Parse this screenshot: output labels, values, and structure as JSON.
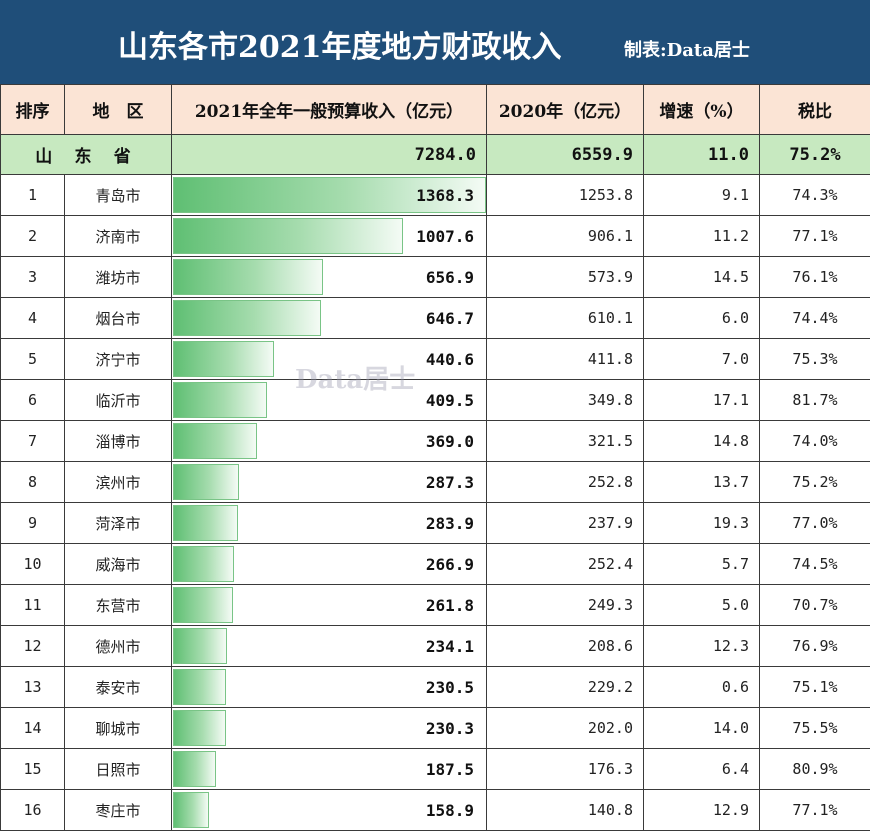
{
  "header": {
    "title": "山东各市2021年度地方财政收入",
    "author": "制表:Data居士"
  },
  "columns": [
    "排序",
    "地　区",
    "2021年全年一般预算收入（亿元）",
    "2020年（亿元）",
    "增速（%）",
    "税比"
  ],
  "province": {
    "name": "山 东 省",
    "v2021": "7284.0",
    "v2020": "6559.9",
    "growth": "11.0",
    "tax": "75.2%"
  },
  "watermark": "Data居士",
  "chart_data": {
    "type": "table",
    "bar_max": 1368.3,
    "rows": [
      {
        "rank": "1",
        "city": "青岛市",
        "v2021": "1368.3",
        "value": 1368.3,
        "v2020": "1253.8",
        "growth": "9.1",
        "tax": "74.3%"
      },
      {
        "rank": "2",
        "city": "济南市",
        "v2021": "1007.6",
        "value": 1007.6,
        "v2020": "906.1",
        "growth": "11.2",
        "tax": "77.1%"
      },
      {
        "rank": "3",
        "city": "潍坊市",
        "v2021": "656.9",
        "value": 656.9,
        "v2020": "573.9",
        "growth": "14.5",
        "tax": "76.1%"
      },
      {
        "rank": "4",
        "city": "烟台市",
        "v2021": "646.7",
        "value": 646.7,
        "v2020": "610.1",
        "growth": "6.0",
        "tax": "74.4%"
      },
      {
        "rank": "5",
        "city": "济宁市",
        "v2021": "440.6",
        "value": 440.6,
        "v2020": "411.8",
        "growth": "7.0",
        "tax": "75.3%"
      },
      {
        "rank": "6",
        "city": "临沂市",
        "v2021": "409.5",
        "value": 409.5,
        "v2020": "349.8",
        "growth": "17.1",
        "tax": "81.7%"
      },
      {
        "rank": "7",
        "city": "淄博市",
        "v2021": "369.0",
        "value": 369.0,
        "v2020": "321.5",
        "growth": "14.8",
        "tax": "74.0%"
      },
      {
        "rank": "8",
        "city": "滨州市",
        "v2021": "287.3",
        "value": 287.3,
        "v2020": "252.8",
        "growth": "13.7",
        "tax": "75.2%"
      },
      {
        "rank": "9",
        "city": "菏泽市",
        "v2021": "283.9",
        "value": 283.9,
        "v2020": "237.9",
        "growth": "19.3",
        "tax": "77.0%"
      },
      {
        "rank": "10",
        "city": "威海市",
        "v2021": "266.9",
        "value": 266.9,
        "v2020": "252.4",
        "growth": "5.7",
        "tax": "74.5%"
      },
      {
        "rank": "11",
        "city": "东营市",
        "v2021": "261.8",
        "value": 261.8,
        "v2020": "249.3",
        "growth": "5.0",
        "tax": "70.7%"
      },
      {
        "rank": "12",
        "city": "德州市",
        "v2021": "234.1",
        "value": 234.1,
        "v2020": "208.6",
        "growth": "12.3",
        "tax": "76.9%"
      },
      {
        "rank": "13",
        "city": "泰安市",
        "v2021": "230.5",
        "value": 230.5,
        "v2020": "229.2",
        "growth": "0.6",
        "tax": "75.1%"
      },
      {
        "rank": "14",
        "city": "聊城市",
        "v2021": "230.3",
        "value": 230.3,
        "v2020": "202.0",
        "growth": "14.0",
        "tax": "75.5%"
      },
      {
        "rank": "15",
        "city": "日照市",
        "v2021": "187.5",
        "value": 187.5,
        "v2020": "176.3",
        "growth": "6.4",
        "tax": "80.9%"
      },
      {
        "rank": "16",
        "city": "枣庄市",
        "v2021": "158.9",
        "value": 158.9,
        "v2020": "140.8",
        "growth": "12.9",
        "tax": "77.1%"
      }
    ]
  }
}
